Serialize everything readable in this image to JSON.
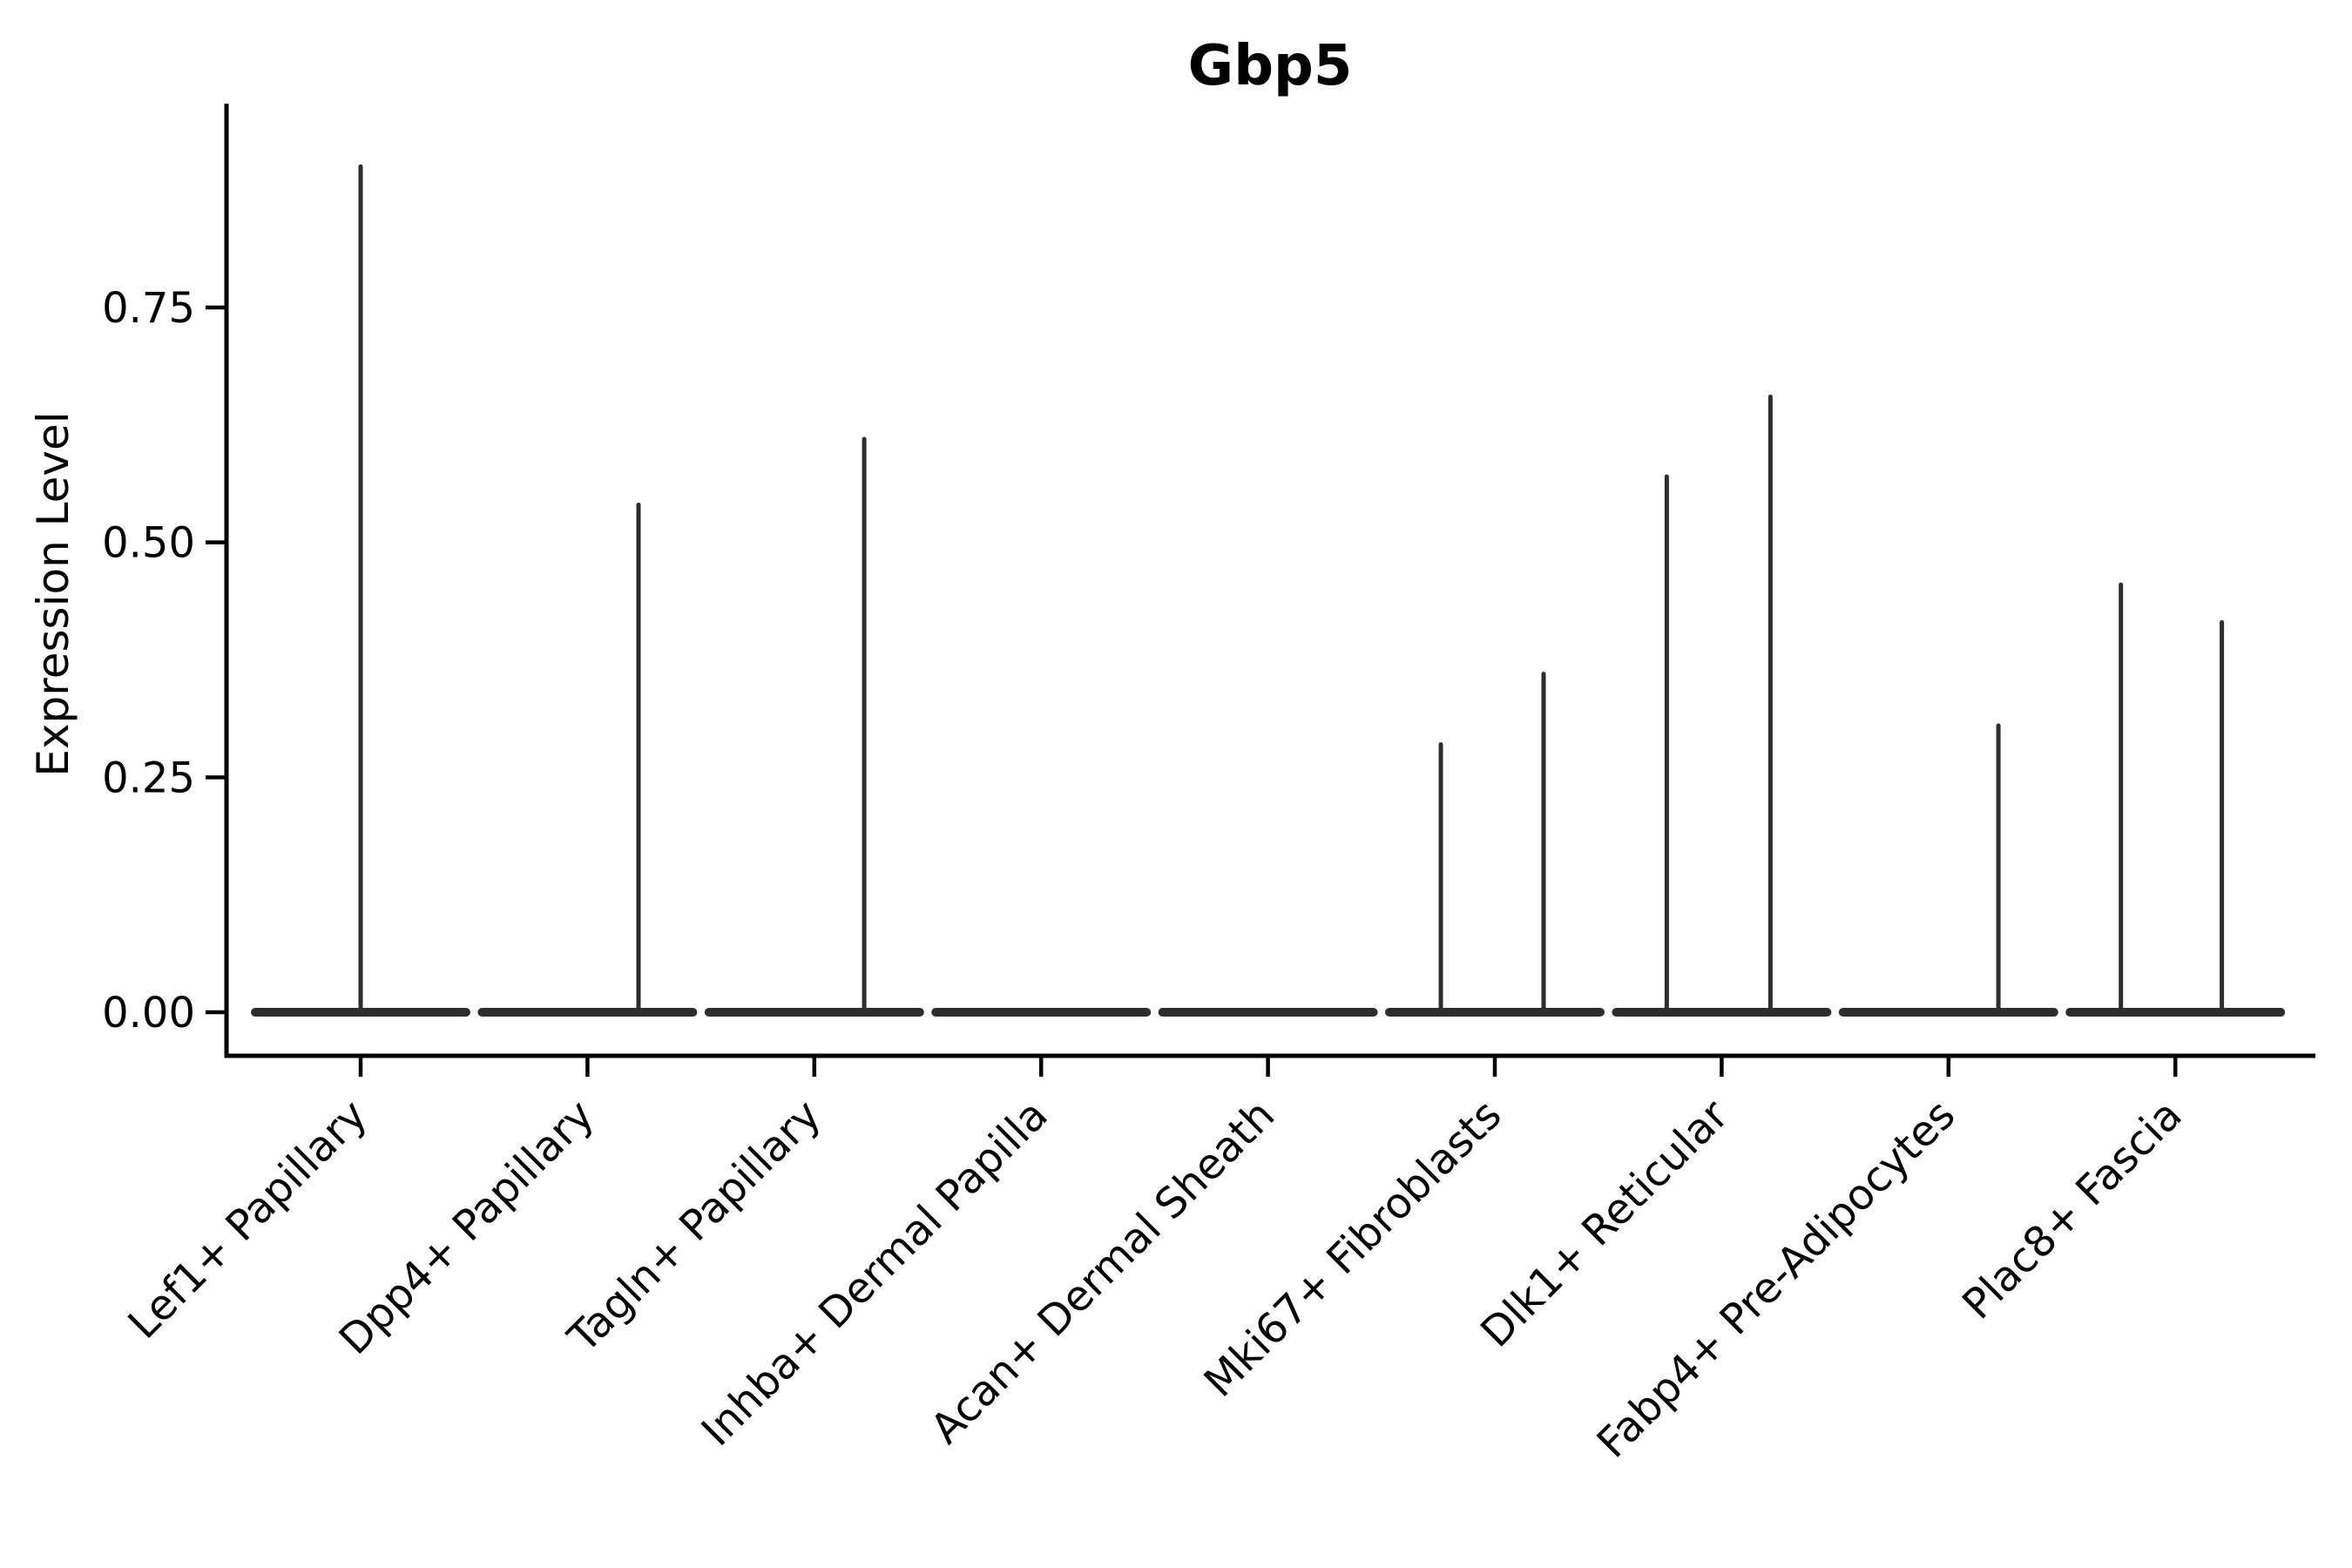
{
  "chart_data": {
    "type": "violin",
    "title": "Gbp5",
    "ylabel": "Expression Level",
    "xlabel": "",
    "categories": [
      "Lef1+ Papillary",
      "Dpp4+ Papillary",
      "Tagln+ Papillary",
      "Inhba+ Dermal Papilla",
      "Acan+ Dermal Sheath",
      "Mki67+ Fibroblasts",
      "Dlk1+ Reticular",
      "Fabp4+ Pre-Adipocytes",
      "Plac8+ Fascia"
    ],
    "ytick_labels": [
      "0.00",
      "0.25",
      "0.50",
      "0.75"
    ],
    "ytick_values": [
      0,
      0.25,
      0.5,
      0.75
    ],
    "ylim": [
      -0.045,
      0.965
    ],
    "grid": false,
    "legend": "none",
    "colors": {
      "violin": "#2d2d2d",
      "axis": "#000000",
      "background": "#ffffff"
    },
    "violins": [
      {
        "category": "Lef1+ Papillary",
        "zero_bar": true,
        "spikes": [
          {
            "offset_frac": 0.0,
            "max_expression": 0.9
          }
        ]
      },
      {
        "category": "Dpp4+ Papillary",
        "zero_bar": true,
        "spikes": [
          {
            "offset_frac": 0.225,
            "max_expression": 0.54
          }
        ]
      },
      {
        "category": "Tagln+ Papillary",
        "zero_bar": true,
        "spikes": [
          {
            "offset_frac": 0.22,
            "max_expression": 0.61
          }
        ]
      },
      {
        "category": "Inhba+ Dermal Papilla",
        "zero_bar": true,
        "spikes": []
      },
      {
        "category": "Acan+ Dermal Sheath",
        "zero_bar": true,
        "spikes": []
      },
      {
        "category": "Mki67+ Fibroblasts",
        "zero_bar": true,
        "spikes": [
          {
            "offset_frac": -0.238,
            "max_expression": 0.285
          },
          {
            "offset_frac": 0.215,
            "max_expression": 0.36
          }
        ]
      },
      {
        "category": "Dlk1+ Reticular",
        "zero_bar": true,
        "spikes": [
          {
            "offset_frac": -0.242,
            "max_expression": 0.57
          },
          {
            "offset_frac": 0.215,
            "max_expression": 0.655
          }
        ]
      },
      {
        "category": "Fabp4+ Pre-Adipocytes",
        "zero_bar": true,
        "spikes": [
          {
            "offset_frac": 0.22,
            "max_expression": 0.305
          }
        ]
      },
      {
        "category": "Plac8+ Fascia",
        "zero_bar": true,
        "spikes": [
          {
            "offset_frac": -0.24,
            "max_expression": 0.455
          },
          {
            "offset_frac": 0.205,
            "max_expression": 0.415
          }
        ]
      }
    ]
  }
}
